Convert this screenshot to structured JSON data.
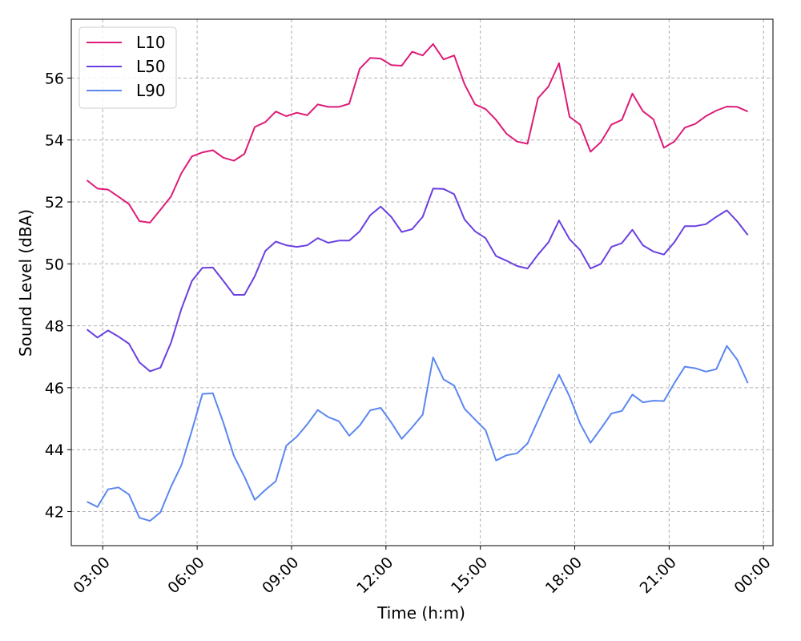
{
  "chart_data": {
    "type": "line",
    "xlabel": "Time (h:m)",
    "ylabel": "Sound Level (dBA)",
    "xlim": [
      2.0,
      24.3
    ],
    "ylim": [
      40.9,
      57.9
    ],
    "x_ticks": [
      {
        "value": 3,
        "label": "03:00"
      },
      {
        "value": 6,
        "label": "06:00"
      },
      {
        "value": 9,
        "label": "09:00"
      },
      {
        "value": 12,
        "label": "12:00"
      },
      {
        "value": 15,
        "label": "15:00"
      },
      {
        "value": 18,
        "label": "18:00"
      },
      {
        "value": 21,
        "label": "21:00"
      },
      {
        "value": 24,
        "label": "00:00"
      }
    ],
    "y_ticks": [
      42,
      44,
      46,
      48,
      50,
      52,
      54,
      56
    ],
    "grid": true,
    "legend_position": "top-left",
    "x": [
      2.5,
      2.833,
      3.167,
      3.5,
      3.833,
      4.167,
      4.5,
      4.833,
      5.167,
      5.5,
      5.833,
      6.167,
      6.5,
      6.833,
      7.167,
      7.5,
      7.833,
      8.167,
      8.5,
      8.833,
      9.167,
      9.5,
      9.833,
      10.167,
      10.5,
      10.833,
      11.167,
      11.5,
      11.833,
      12.167,
      12.5,
      12.833,
      13.167,
      13.5,
      13.833,
      14.167,
      14.5,
      14.833,
      15.167,
      15.5,
      15.833,
      16.167,
      16.5,
      16.833,
      17.167,
      17.5,
      17.833,
      18.167,
      18.5,
      18.833,
      19.167,
      19.5,
      19.833,
      20.167,
      20.5,
      20.833,
      21.167,
      21.5,
      21.833,
      22.167,
      22.5,
      22.833,
      23.167,
      23.5
    ],
    "series": [
      {
        "name": "L10",
        "color": "#dd1c77",
        "values": [
          52.7,
          52.43,
          52.4,
          52.17,
          51.93,
          51.38,
          51.33,
          51.75,
          52.17,
          52.93,
          53.47,
          53.6,
          53.67,
          53.43,
          53.33,
          53.55,
          54.42,
          54.58,
          54.92,
          54.77,
          54.88,
          54.8,
          55.15,
          55.07,
          55.07,
          55.17,
          56.3,
          56.65,
          56.63,
          56.42,
          56.4,
          56.85,
          56.73,
          57.1,
          56.6,
          56.73,
          55.8,
          55.15,
          55.0,
          54.65,
          54.2,
          53.95,
          53.88,
          55.35,
          55.73,
          56.48,
          54.75,
          54.5,
          53.62,
          53.93,
          54.5,
          54.65,
          55.5,
          54.93,
          54.67,
          53.75,
          53.95,
          54.4,
          54.52,
          54.77,
          54.95,
          55.08,
          55.07,
          54.92
        ]
      },
      {
        "name": "L50",
        "color": "#6a40e0",
        "values": [
          47.88,
          47.62,
          47.85,
          47.65,
          47.42,
          46.82,
          46.53,
          46.65,
          47.45,
          48.55,
          49.45,
          49.87,
          49.88,
          49.45,
          49.0,
          49.0,
          49.6,
          50.42,
          50.72,
          50.6,
          50.55,
          50.6,
          50.83,
          50.68,
          50.75,
          50.75,
          51.05,
          51.57,
          51.85,
          51.52,
          51.03,
          51.12,
          51.52,
          52.43,
          52.42,
          52.25,
          51.43,
          51.05,
          50.83,
          50.25,
          50.1,
          49.93,
          49.85,
          50.3,
          50.7,
          51.4,
          50.8,
          50.45,
          49.85,
          50.0,
          50.55,
          50.67,
          51.1,
          50.6,
          50.4,
          50.3,
          50.7,
          51.22,
          51.22,
          51.28,
          51.52,
          51.73,
          51.37,
          50.93
        ]
      },
      {
        "name": "L90",
        "color": "#5a87f0",
        "values": [
          42.32,
          42.15,
          42.72,
          42.78,
          42.55,
          41.8,
          41.7,
          41.98,
          42.8,
          43.5,
          44.62,
          45.8,
          45.82,
          44.87,
          43.8,
          43.13,
          42.38,
          42.7,
          42.98,
          44.13,
          44.42,
          44.82,
          45.28,
          45.05,
          44.92,
          44.45,
          44.78,
          45.27,
          45.35,
          44.88,
          44.35,
          44.72,
          45.13,
          46.98,
          46.27,
          46.07,
          45.32,
          44.97,
          44.63,
          43.65,
          43.82,
          43.88,
          44.2,
          44.95,
          45.7,
          46.42,
          45.72,
          44.85,
          44.22,
          44.68,
          45.17,
          45.25,
          45.78,
          45.53,
          45.58,
          45.57,
          46.15,
          46.68,
          46.63,
          46.52,
          46.6,
          47.35,
          46.9,
          46.15
        ]
      }
    ]
  }
}
